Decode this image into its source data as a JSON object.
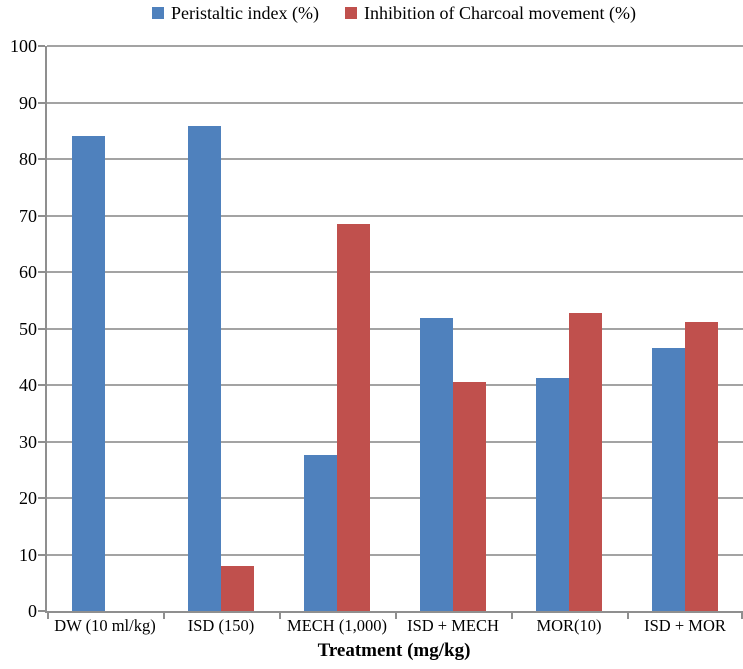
{
  "chart_data": {
    "type": "bar",
    "title": "",
    "xlabel": "Treatment (mg/kg)",
    "ylabel": "",
    "ylim": [
      0,
      100
    ],
    "ytick_step": 10,
    "grid": true,
    "legend_position": "top-center",
    "categories": [
      "DW (10 ml/kg)",
      "ISD (150)",
      "MECH (1,000)",
      "ISD + MECH",
      "MOR(10)",
      "ISD + MOR"
    ],
    "series": [
      {
        "name": "Peristaltic index (%)",
        "color": "#4F81BD",
        "values": [
          84.0,
          85.8,
          27.6,
          51.9,
          41.3,
          46.6
        ]
      },
      {
        "name": "Inhibition of Charcoal movement (%)",
        "color": "#C0504D",
        "values": [
          0,
          8.0,
          68.5,
          40.5,
          52.7,
          51.1
        ]
      }
    ]
  },
  "colors": {
    "axis": "#8f8f8f",
    "gridline": "#a3a3a3",
    "background": "#ffffff",
    "series_blue": "#4F81BD",
    "series_red": "#C0504D"
  }
}
